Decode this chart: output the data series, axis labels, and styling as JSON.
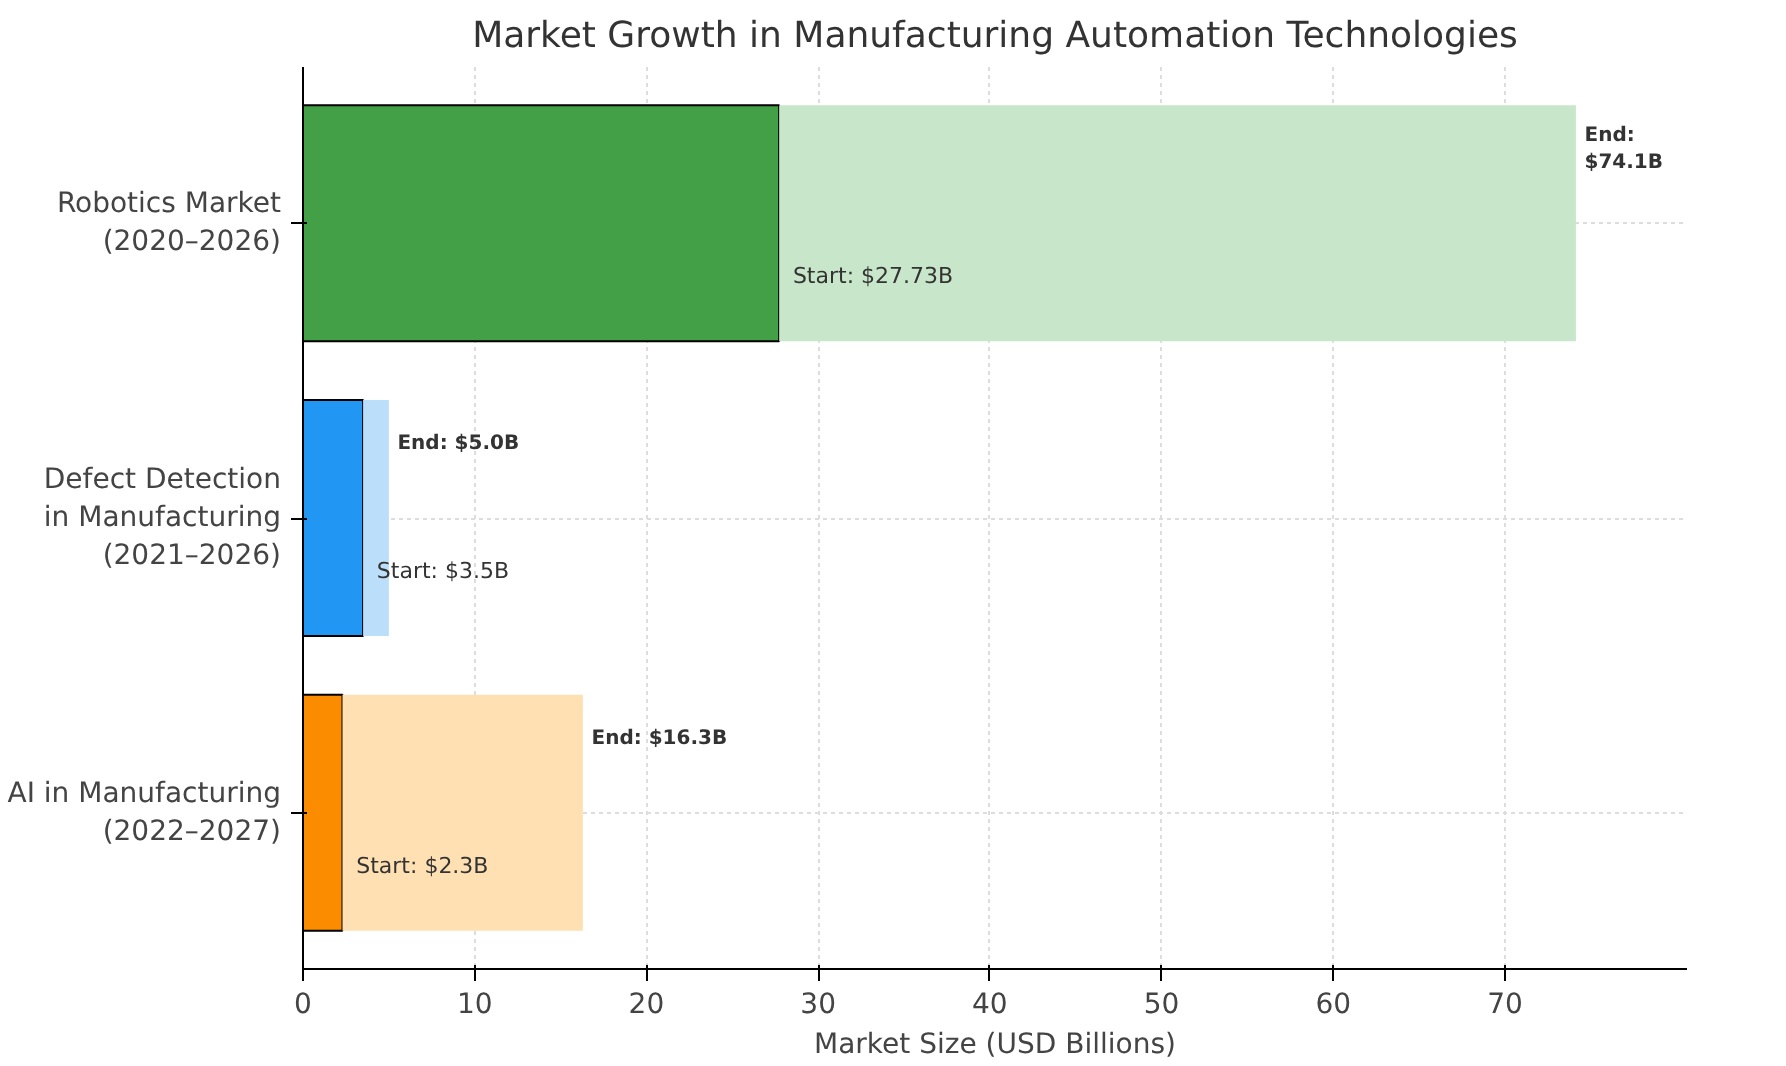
{
  "chart_data": {
    "type": "bar",
    "orientation": "horizontal",
    "stacked": true,
    "title": "Market Growth in Manufacturing Automation Technologies",
    "xlabel": "Market Size (USD Billions)",
    "categories": [
      "Robotics Market\n(2020–2026)",
      "Defect Detection\nin Manufacturing\n(2021–2026)",
      "AI in Manufacturing\n(2022–2027)"
    ],
    "series": [
      {
        "colors": [
          "#43a047",
          "#2196f3",
          "#fb8c00"
        ],
        "values": [
          27.73,
          3.5,
          2.3
        ],
        "value_labels": [
          "Start: $27.73B",
          "Start: $3.5B",
          "Start: $2.3B"
        ]
      },
      {
        "colors": [
          "#c8e6c9",
          "#bbdefb",
          "#ffe0b2"
        ],
        "values": [
          46.4,
          1.5,
          14.0
        ]
      }
    ],
    "totals": [
      "End: $74.1B",
      "End: $5.0B",
      "End: $16.3B"
    ],
    "xlim": [
      0,
      80.6
    ],
    "xticks": [
      0,
      10,
      20,
      30,
      40,
      50,
      60,
      70
    ],
    "grid": true
  }
}
